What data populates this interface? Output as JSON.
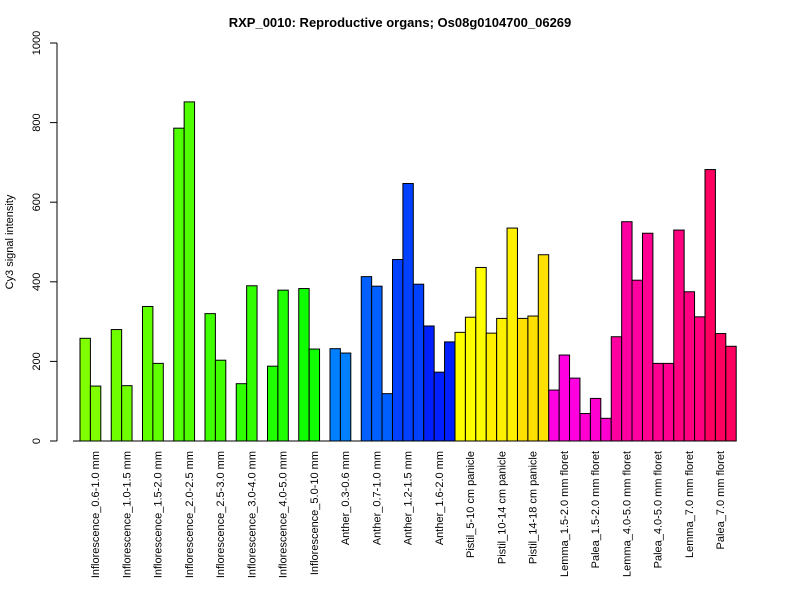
{
  "chart_data": {
    "type": "bar",
    "title": "RXP_0010: Reproductive organs; Os08g0104700_06269",
    "xlabel": "",
    "ylabel": "Cy3 signal intensity",
    "ylim": [
      0,
      1000
    ],
    "yticks": [
      0,
      200,
      400,
      600,
      800,
      1000
    ],
    "grid": false,
    "legend": "none",
    "groups": [
      {
        "label": "Inflorescence_0.6-1.0 mm",
        "color": "#80FF00",
        "values": [
          258,
          138
        ]
      },
      {
        "label": "Inflorescence_1.0-1.5 mm",
        "color": "#70FF00",
        "values": [
          280,
          139
        ]
      },
      {
        "label": "Inflorescence_1.5-2.0 mm",
        "color": "#60FF00",
        "values": [
          338,
          195
        ]
      },
      {
        "label": "Inflorescence_2.0-2.5 mm",
        "color": "#50FF00",
        "values": [
          786,
          852
        ]
      },
      {
        "label": "Inflorescence_2.5-3.0 mm",
        "color": "#40FF00",
        "values": [
          320,
          203
        ]
      },
      {
        "label": "Inflorescence_3.0-4.0 mm",
        "color": "#30FF00",
        "values": [
          144,
          390
        ]
      },
      {
        "label": "Inflorescence_4.0-5.0 mm",
        "color": "#20FF00",
        "values": [
          188,
          379
        ]
      },
      {
        "label": "Inflorescence_5.0-10 mm",
        "color": "#10FF00",
        "values": [
          383,
          231
        ]
      },
      {
        "label": "Anther_0.3-0.6 mm",
        "color": "#0080FF",
        "values": [
          232,
          221
        ]
      },
      {
        "label": "Anther_0.7-1.0 mm",
        "color": "#0060FF",
        "values": [
          413,
          389,
          119
        ]
      },
      {
        "label": "Anther_1.2-1.5 mm",
        "color": "#0040FF",
        "values": [
          456,
          647,
          394
        ]
      },
      {
        "label": "Anther_1.6-2.0 mm",
        "color": "#0020FF",
        "values": [
          289,
          173,
          249
        ]
      },
      {
        "label": "Pistil_5-10 cm panicle",
        "color": "#FFFF00",
        "values": [
          273,
          311,
          436
        ]
      },
      {
        "label": "Pistil_10-14 cm panicle",
        "color": "#FFF000",
        "values": [
          271,
          308,
          535
        ]
      },
      {
        "label": "Pistil_14-18 cm panicle",
        "color": "#FFE000",
        "values": [
          308,
          314,
          468
        ]
      },
      {
        "label": "Lemma_1.5-2.0 mm floret",
        "color": "#FF00E0",
        "values": [
          128,
          216,
          158
        ]
      },
      {
        "label": "Palea_1.5-2.0 mm floret",
        "color": "#FF00D0",
        "values": [
          69,
          107,
          57
        ]
      },
      {
        "label": "Lemma_4.0-5.0 mm floret",
        "color": "#FF00A0",
        "values": [
          262,
          551,
          404
        ]
      },
      {
        "label": "Palea_4.0-5.0 mm floret",
        "color": "#FF0090",
        "values": [
          522,
          195,
          195
        ]
      },
      {
        "label": "Lemma_7.0 mm floret",
        "color": "#FF0080",
        "values": [
          530,
          375,
          312
        ]
      },
      {
        "label": "Palea_7.0 mm floret",
        "color": "#FF0060",
        "values": [
          682,
          270,
          238
        ]
      }
    ]
  }
}
